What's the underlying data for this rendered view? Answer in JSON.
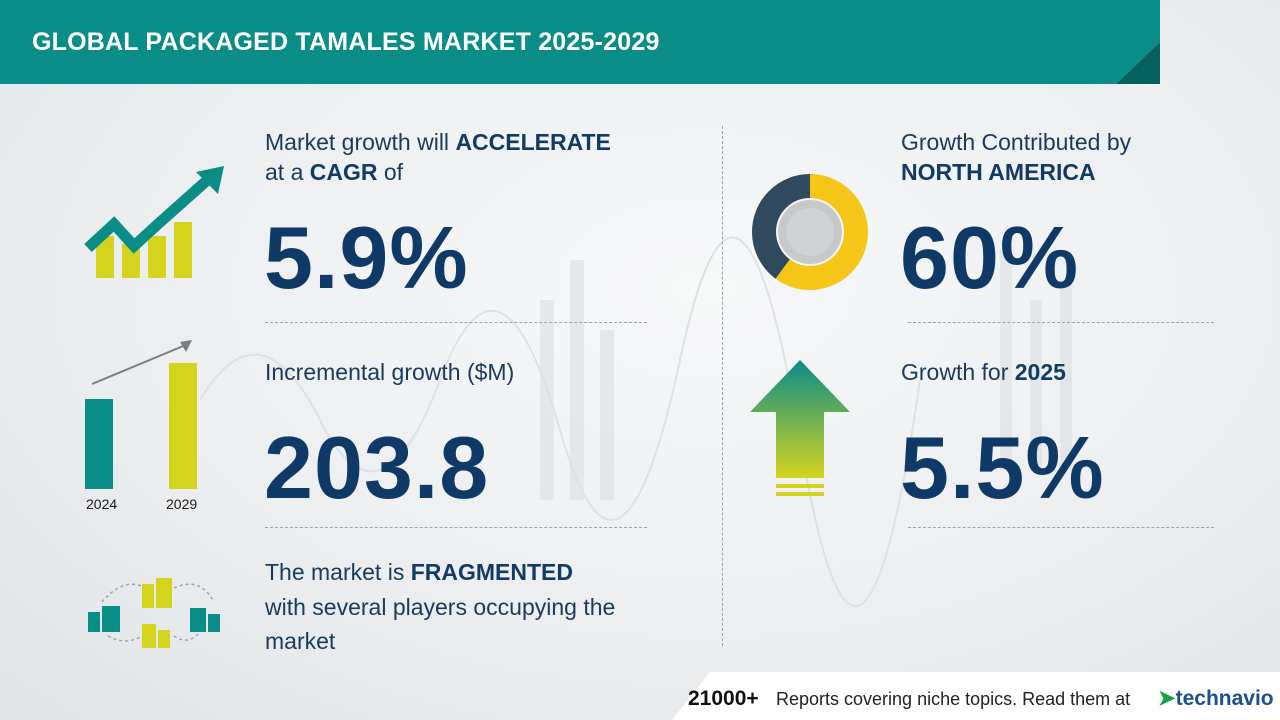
{
  "header": {
    "title": "GLOBAL PACKAGED TAMALES MARKET 2025-2029"
  },
  "cagr": {
    "line1_prefix": "Market growth will ",
    "line1_emphasis": "ACCELERATE",
    "line2_prefix": "at a ",
    "line2_emphasis": "CAGR",
    "line2_suffix": " of",
    "value": "5.9%"
  },
  "incremental": {
    "label": "Incremental growth ($M)",
    "value": "203.8",
    "year_start": "2024",
    "year_end": "2029"
  },
  "market": {
    "line1_prefix": "The market is ",
    "line1_emphasis": "FRAGMENTED",
    "line2": "with several players occupying the",
    "line3": "market"
  },
  "region": {
    "line1": "Growth Contributed by",
    "line2": "NORTH AMERICA",
    "value": "60%",
    "share": 0.6
  },
  "yoy": {
    "label_prefix": "Growth for ",
    "label_year": "2025",
    "value": "5.5%"
  },
  "footer": {
    "count": "21000+",
    "text": "Reports covering niche topics. Read them at",
    "brand": "technavio"
  },
  "colors": {
    "teal": "#0a8c87",
    "yellow_green": "#d4d41e",
    "navy": "#0f3a68",
    "donut_yellow": "#f5c518",
    "donut_dark": "#2f4a5e"
  }
}
